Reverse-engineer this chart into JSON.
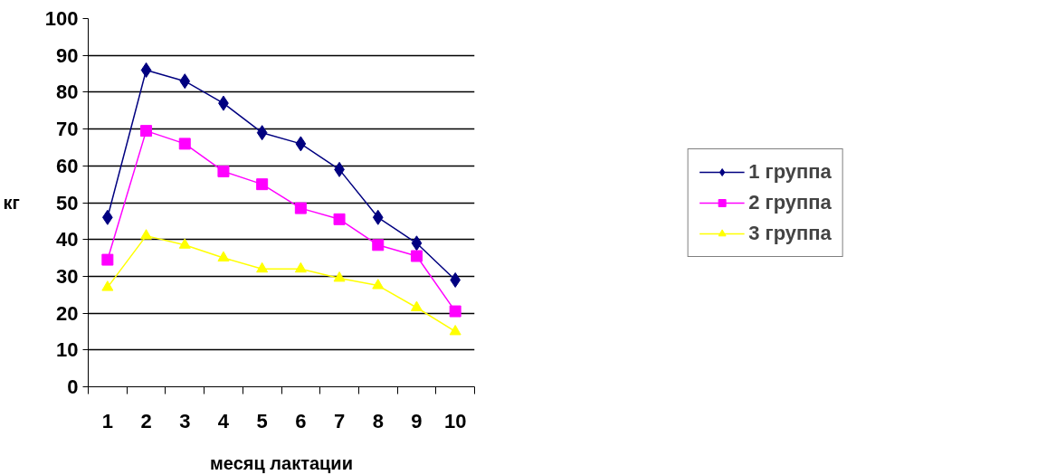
{
  "chart_data": {
    "type": "line",
    "xlabel": "месяц лактации",
    "ylabel": "кг",
    "categories": [
      "1",
      "2",
      "3",
      "4",
      "5",
      "6",
      "7",
      "8",
      "9",
      "10"
    ],
    "ylim": [
      0,
      100
    ],
    "yticks": [
      0,
      10,
      20,
      30,
      40,
      50,
      60,
      70,
      80,
      90,
      100
    ],
    "grid": "y",
    "legend": "right",
    "line_style": "solid",
    "series": [
      {
        "name": "1 группа",
        "color": "#000080",
        "marker": "diamond",
        "values": [
          46,
          86,
          83,
          77,
          69,
          66,
          59,
          46,
          39,
          29
        ]
      },
      {
        "name": "2 группа",
        "color": "#ff00ff",
        "marker": "square",
        "values": [
          34.5,
          69.5,
          66,
          58.5,
          55,
          48.5,
          45.5,
          38.5,
          35.5,
          20.5
        ]
      },
      {
        "name": "3 группа",
        "color": "#ffff00",
        "marker": "triangle",
        "values": [
          27,
          41,
          38.5,
          35,
          32,
          32,
          29.5,
          27.5,
          21.5,
          15
        ]
      }
    ]
  }
}
